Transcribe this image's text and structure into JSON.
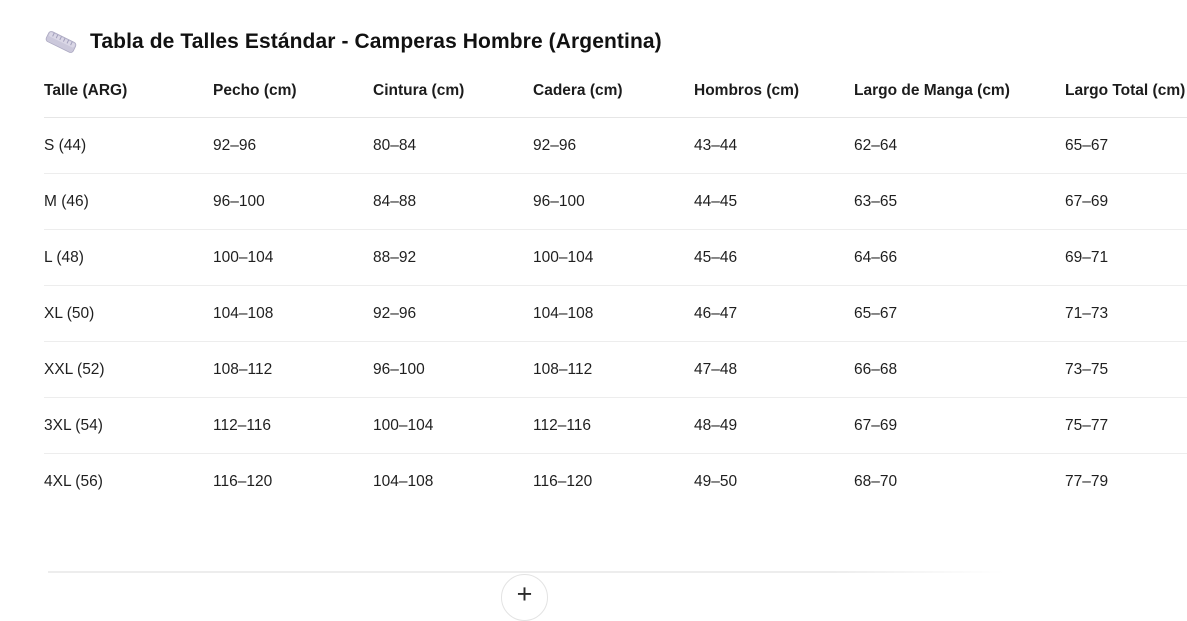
{
  "header": {
    "icon": "ruler-icon",
    "title": "Tabla de Talles Estándar - Camperas Hombre (Argentina)"
  },
  "table": {
    "columns": [
      "Talle (ARG)",
      "Pecho (cm)",
      "Cintura (cm)",
      "Cadera (cm)",
      "Hombros (cm)",
      "Largo de Manga (cm)",
      "Largo Total (cm)"
    ],
    "rows": [
      [
        "S (44)",
        "92–96",
        "80–84",
        "92–96",
        "43–44",
        "62–64",
        "65–67"
      ],
      [
        "M (46)",
        "96–100",
        "84–88",
        "96–100",
        "44–45",
        "63–65",
        "67–69"
      ],
      [
        "L (48)",
        "100–104",
        "88–92",
        "100–104",
        "45–46",
        "64–66",
        "69–71"
      ],
      [
        "XL (50)",
        "104–108",
        "92–96",
        "104–108",
        "46–47",
        "65–67",
        "71–73"
      ],
      [
        "XXL (52)",
        "108–112",
        "96–100",
        "108–112",
        "47–48",
        "66–68",
        "73–75"
      ],
      [
        "3XL (54)",
        "112–116",
        "100–104",
        "112–116",
        "48–49",
        "67–69",
        "75–77"
      ],
      [
        "4XL (56)",
        "116–120",
        "104–108",
        "116–120",
        "49–50",
        "68–70",
        "77–79"
      ]
    ]
  },
  "footer": {
    "add_row_button": "+"
  },
  "colors": {
    "title": "#111111",
    "body_text": "#1f1f1f",
    "header_divider": "#e6e6e6",
    "row_divider": "#ededed",
    "ruler_icon_fill": "#cbc8db",
    "ruler_icon_stroke": "#aca9c2"
  }
}
